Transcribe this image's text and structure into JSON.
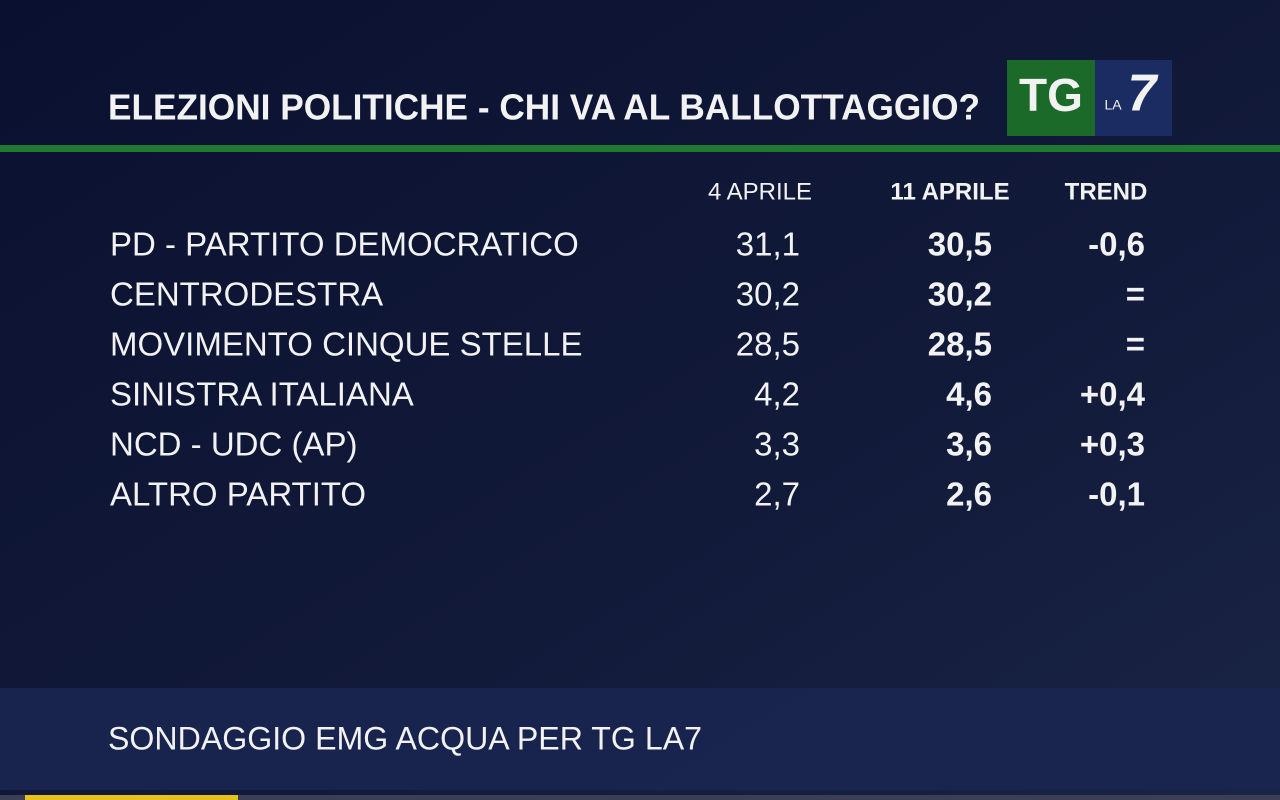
{
  "header": {
    "title": "ELEZIONI POLITICHE - CHI VA AL BALLOTTAGGIO?"
  },
  "logo": {
    "tg": "TG",
    "la": "LA",
    "seven": "7"
  },
  "table": {
    "columns": [
      "4 APRILE",
      "11 APRILE",
      "TREND"
    ],
    "rows": [
      [
        "PD - PARTITO DEMOCRATICO",
        "31,1",
        "30,5",
        "-0,6"
      ],
      [
        "CENTRODESTRA",
        "30,2",
        "30,2",
        "="
      ],
      [
        "MOVIMENTO CINQUE STELLE",
        "28,5",
        "28,5",
        "="
      ],
      [
        "SINISTRA ITALIANA",
        "4,2",
        "4,6",
        "+0,4"
      ],
      [
        "NCD - UDC (AP)",
        "3,3",
        "3,6",
        "+0,3"
      ],
      [
        "ALTRO PARTITO",
        "2,7",
        "2,6",
        "-0,1"
      ]
    ]
  },
  "footer": {
    "source": "SONDAGGIO EMG ACQUA PER TG LA7"
  }
}
